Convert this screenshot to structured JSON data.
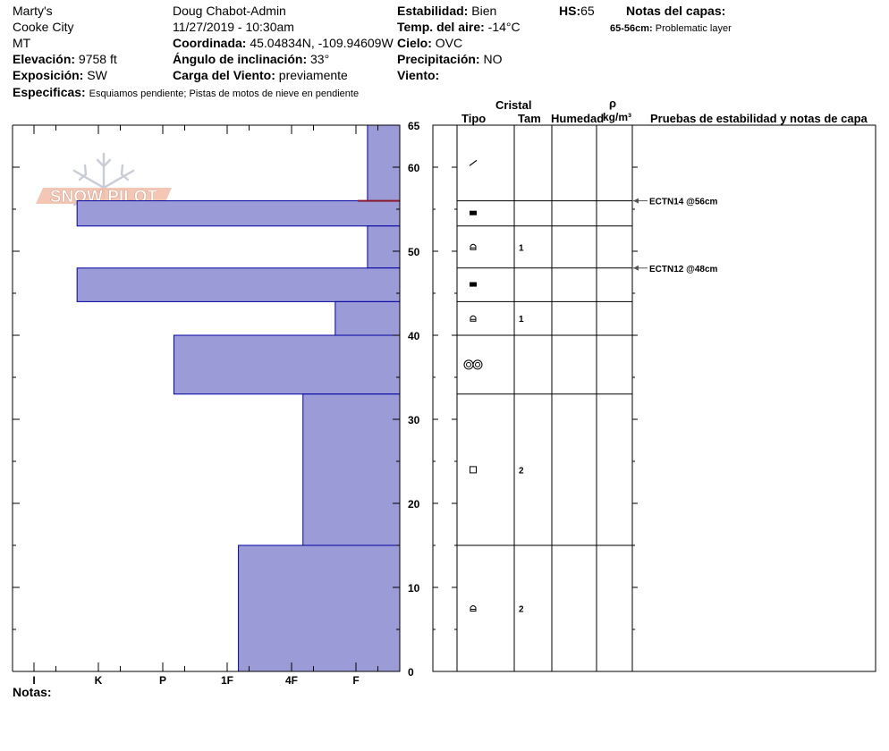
{
  "header": {
    "location_name": "Marty's",
    "city": "Cooke City",
    "state": "MT",
    "elevation_label": "Elevación:",
    "elevation_value": "9758 ft",
    "aspect_label": "Exposición:",
    "aspect_value": "SW",
    "specifics_label": "Especificas:",
    "specifics_value": "Esquiamos pendiente;  Pistas de motos de nieve en pendiente",
    "observer": "Doug Chabot-Admin",
    "datetime": "11/27/2019 - 10:30am",
    "coordinates_label": "Coordinada:",
    "coordinates_value": "45.04834N, -109.94609W",
    "slope_label": "Ángulo de inclinación:",
    "slope_value": "33°",
    "wind_loading_label": "Carga del Viento:",
    "wind_loading_value": "previamente",
    "stability_label": "Estabilidad:",
    "stability_value": "Bien",
    "air_temp_label": "Temp. del aire:",
    "air_temp_value": "-14°C",
    "sky_label": "Cielo:",
    "sky_value": "OVC",
    "precip_label": "Precipitación:",
    "precip_value": "NO",
    "wind_label": "Viento:",
    "wind_value": "",
    "hs_label": "HS:",
    "hs_value": "65",
    "layer_notes_title": "Notas del capas:",
    "layer_note_range": "65-56cm:",
    "layer_note_text": "Problematic layer"
  },
  "logo": {
    "text": "SNOW PILOT"
  },
  "columns": {
    "crystal": "Cristal",
    "type": "Tipo",
    "size": "Tam",
    "moisture": "Humedad",
    "density_symbol": "ρ",
    "density_unit": "kg/m³",
    "stability_tests": "Pruebas de estabilidad y notas de capa"
  },
  "footer": {
    "notes_label": "Notas:"
  },
  "chart_data": {
    "type": "snow_profile",
    "y_axis": {
      "label": "",
      "range": [
        0,
        65
      ],
      "ticks": [
        0,
        10,
        20,
        30,
        40,
        50,
        60,
        65
      ]
    },
    "hardness_scale": [
      "I",
      "K",
      "P",
      "1F",
      "4F",
      "F"
    ],
    "layers": [
      {
        "top": 65,
        "bottom": 56,
        "hardness": "F",
        "hardness_value": 0.5,
        "grain": "decomposing-fragments",
        "size": ""
      },
      {
        "top": 56,
        "bottom": 53,
        "hardness": "K",
        "hardness_value": 5.0,
        "grain": "melt-freeze-crust",
        "size": ""
      },
      {
        "top": 53,
        "bottom": 48,
        "hardness": "F",
        "hardness_value": 0.5,
        "grain": "depth-hoar",
        "size": "1"
      },
      {
        "top": 48,
        "bottom": 44,
        "hardness": "K",
        "hardness_value": 5.0,
        "grain": "melt-freeze-crust",
        "size": ""
      },
      {
        "top": 44,
        "bottom": 40,
        "hardness": "F+",
        "hardness_value": 1.0,
        "grain": "depth-hoar",
        "size": "1"
      },
      {
        "top": 40,
        "bottom": 33,
        "hardness": "P+",
        "hardness_value": 3.5,
        "grain": "melt-forms",
        "size": ""
      },
      {
        "top": 33,
        "bottom": 15,
        "hardness": "4F",
        "hardness_value": 1.5,
        "grain": "faceted-crystals",
        "size": "2"
      },
      {
        "top": 15,
        "bottom": 0,
        "hardness": "1F+",
        "hardness_value": 2.5,
        "grain": "depth-hoar",
        "size": "2"
      }
    ],
    "stability_tests": [
      {
        "depth": 56,
        "label": "ECTN14 @56cm"
      },
      {
        "depth": 48,
        "label": "ECTN12 @48cm"
      }
    ],
    "problem_layer": {
      "depth": 56,
      "color": "#8b1a2e"
    },
    "colors": {
      "fill": "#9b9bd7",
      "stroke": "#0000a0"
    }
  }
}
